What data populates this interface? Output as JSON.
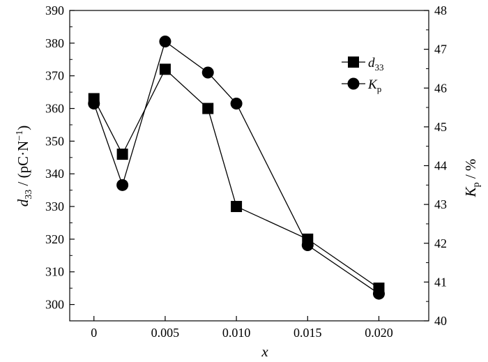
{
  "chart_data": {
    "type": "line",
    "x": [
      0,
      0.002,
      0.005,
      0.008,
      0.01,
      0.015,
      0.02
    ],
    "x_tick_values": [
      0,
      0.005,
      0.01,
      0.015,
      0.02
    ],
    "x_tick_labels": [
      "0",
      "0.005",
      "0.010",
      "0.015",
      "0.020"
    ],
    "xlabel": "x",
    "xlim": [
      -0.0017,
      0.0235
    ],
    "y_left": {
      "label_parts": {
        "sym": "d",
        "sub": "33",
        "rest": " / (pC·N",
        "sup": "−1",
        "close": ")"
      },
      "ylim": [
        295,
        390
      ],
      "ticks": [
        300,
        310,
        320,
        330,
        340,
        350,
        360,
        370,
        380,
        390
      ],
      "tick_labels": [
        "300",
        "310",
        "320",
        "330",
        "340",
        "350",
        "360",
        "370",
        "380",
        "390"
      ]
    },
    "y_right": {
      "label_parts": {
        "sym": "K",
        "sub": "p",
        "rest": " / %"
      },
      "ylim": [
        40,
        48
      ],
      "ticks": [
        40,
        41,
        42,
        43,
        44,
        45,
        46,
        47,
        48
      ],
      "tick_labels": [
        "40",
        "41",
        "42",
        "43",
        "44",
        "45",
        "46",
        "47",
        "48"
      ]
    },
    "series": [
      {
        "legend_sym": "d",
        "legend_sub": "33",
        "axis": "left",
        "marker": "square",
        "values": [
          363,
          346,
          372,
          360,
          330,
          320,
          305
        ]
      },
      {
        "legend_sym": "K",
        "legend_sub": "p",
        "axis": "right",
        "marker": "circle",
        "values": [
          45.6,
          43.5,
          47.2,
          46.4,
          45.6,
          41.95,
          40.7
        ]
      }
    ],
    "legend_position": "top-right",
    "grid": false
  }
}
